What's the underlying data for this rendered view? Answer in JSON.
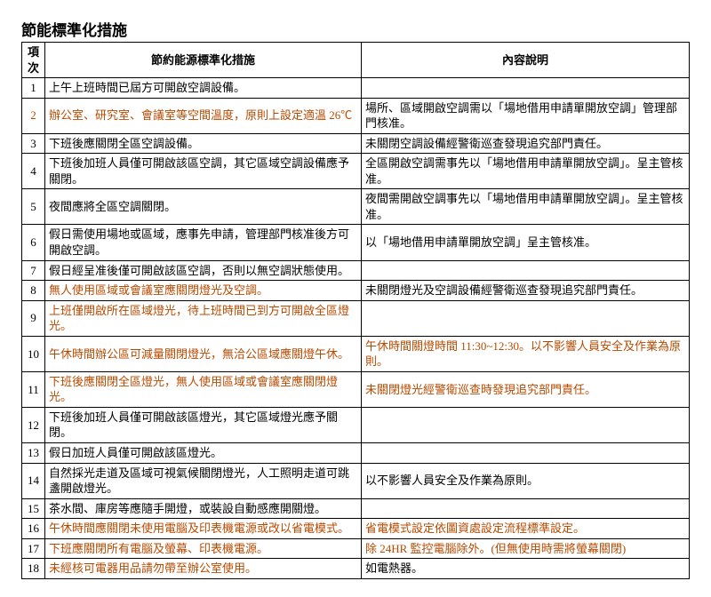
{
  "title": "節能標準化措施",
  "headers": {
    "idx": "項次",
    "measure": "節約能源標準化措施",
    "desc": "內容說明"
  },
  "colors": {
    "highlight": "#b84a00",
    "text": "#000000",
    "border": "#000000",
    "bg": "#ffffff"
  },
  "rows": [
    {
      "n": "1",
      "n_hl": false,
      "measure": "上午上班時間已屆方可開啟空調設備。",
      "m_hl": false,
      "desc": "",
      "d_hl": false
    },
    {
      "n": "2",
      "n_hl": true,
      "measure": "辦公室、研究室、會議室等空間溫度，原則上設定適溫 26℃",
      "m_hl": true,
      "desc": "場所、區域開啟空調需以「場地借用申請單開放空調」管理部門核准。",
      "d_hl": false
    },
    {
      "n": "3",
      "n_hl": false,
      "measure": "下班後應關閉全區空調設備。",
      "m_hl": false,
      "desc": "未關閉空調設備經警衛巡查發現追究部門責任。",
      "d_hl": false
    },
    {
      "n": "4",
      "n_hl": false,
      "measure": "下班後加班人員僅可開啟該區空調，其它區域空調設備應予關閉。",
      "m_hl": false,
      "desc": "全區開啟空調需事先以「場地借用申請單開放空調」。呈主管核准。",
      "d_hl": false
    },
    {
      "n": "5",
      "n_hl": false,
      "measure": "夜間應將全區空調關閉。",
      "m_hl": false,
      "desc": "夜間需開啟空調事先以「場地借用申請單開放空調」。呈主管核准。",
      "d_hl": false
    },
    {
      "n": "6",
      "n_hl": false,
      "measure": "假日需使用場地或區域，應事先申請，管理部門核准後方可開啟空調。",
      "m_hl": false,
      "desc": "以「場地借用申請單開放空調」呈主管核准。",
      "d_hl": false
    },
    {
      "n": "7",
      "n_hl": false,
      "measure": "假日經呈准後僅可開啟該區空調，否則以無空調狀態使用。",
      "m_hl": false,
      "desc": "",
      "d_hl": false
    },
    {
      "n": "8",
      "n_hl": false,
      "measure": "無人使用區域或會議室應關閉燈光及空調。",
      "m_hl": true,
      "desc": "未關閉燈光及空調設備經警衛巡查發現追究部門責任。",
      "d_hl": false
    },
    {
      "n": "9",
      "n_hl": false,
      "measure": "上班僅開啟所在區域燈光，待上班時間已到方可開啟全區燈光。",
      "m_hl": true,
      "desc": "",
      "d_hl": false
    },
    {
      "n": "10",
      "n_hl": false,
      "measure": "午休時間辦公區可減量關閉燈光，無洽公區域應關燈午休。",
      "m_hl": true,
      "desc": "午休時間關燈時間 11:30~12:30。以不影響人員安全及作業為原則。",
      "d_hl": true
    },
    {
      "n": "11",
      "n_hl": false,
      "measure": "下班後應關閉全區燈光，無人使用區域或會議室應關閉燈光。",
      "m_hl": true,
      "desc": "未關閉燈光經警衛巡查時發現追究部門責任。",
      "d_hl": true
    },
    {
      "n": "12",
      "n_hl": false,
      "measure": "下班後加班人員僅可開啟該區燈光，其它區域燈光應予關閉。",
      "m_hl": false,
      "desc": "",
      "d_hl": false
    },
    {
      "n": "13",
      "n_hl": false,
      "measure": "假日加班人員僅可開啟該區燈光。",
      "m_hl": false,
      "desc": "",
      "d_hl": false
    },
    {
      "n": "14",
      "n_hl": false,
      "measure": "自然採光走道及區域可視氣候關閉燈光，人工照明走道可跳盞開啟燈光。",
      "m_hl": false,
      "desc": "以不影響人員安全及作業為原則。",
      "d_hl": false
    },
    {
      "n": "15",
      "n_hl": false,
      "measure": "茶水間、庫房等應隨手開燈，或裝設自動感應開關燈。",
      "m_hl": false,
      "desc": "",
      "d_hl": false
    },
    {
      "n": "16",
      "n_hl": false,
      "measure": "午休時間應關閉未使用電腦及印表機電源或改以省電模式。",
      "m_hl": true,
      "desc": "省電模式設定依圖資處設定流程標準設定。",
      "d_hl": true
    },
    {
      "n": "17",
      "n_hl": false,
      "measure": "下班應關閉所有電腦及螢幕、印表機電源。",
      "m_hl": true,
      "desc": "除 24HR 監控電腦除外。(但無使用時需將螢幕關閉)",
      "d_hl": true
    },
    {
      "n": "18",
      "n_hl": false,
      "measure": "未經核可電器用品請勿帶至辦公室使用。",
      "m_hl": true,
      "desc": "如電熱器。",
      "d_hl": false
    }
  ]
}
